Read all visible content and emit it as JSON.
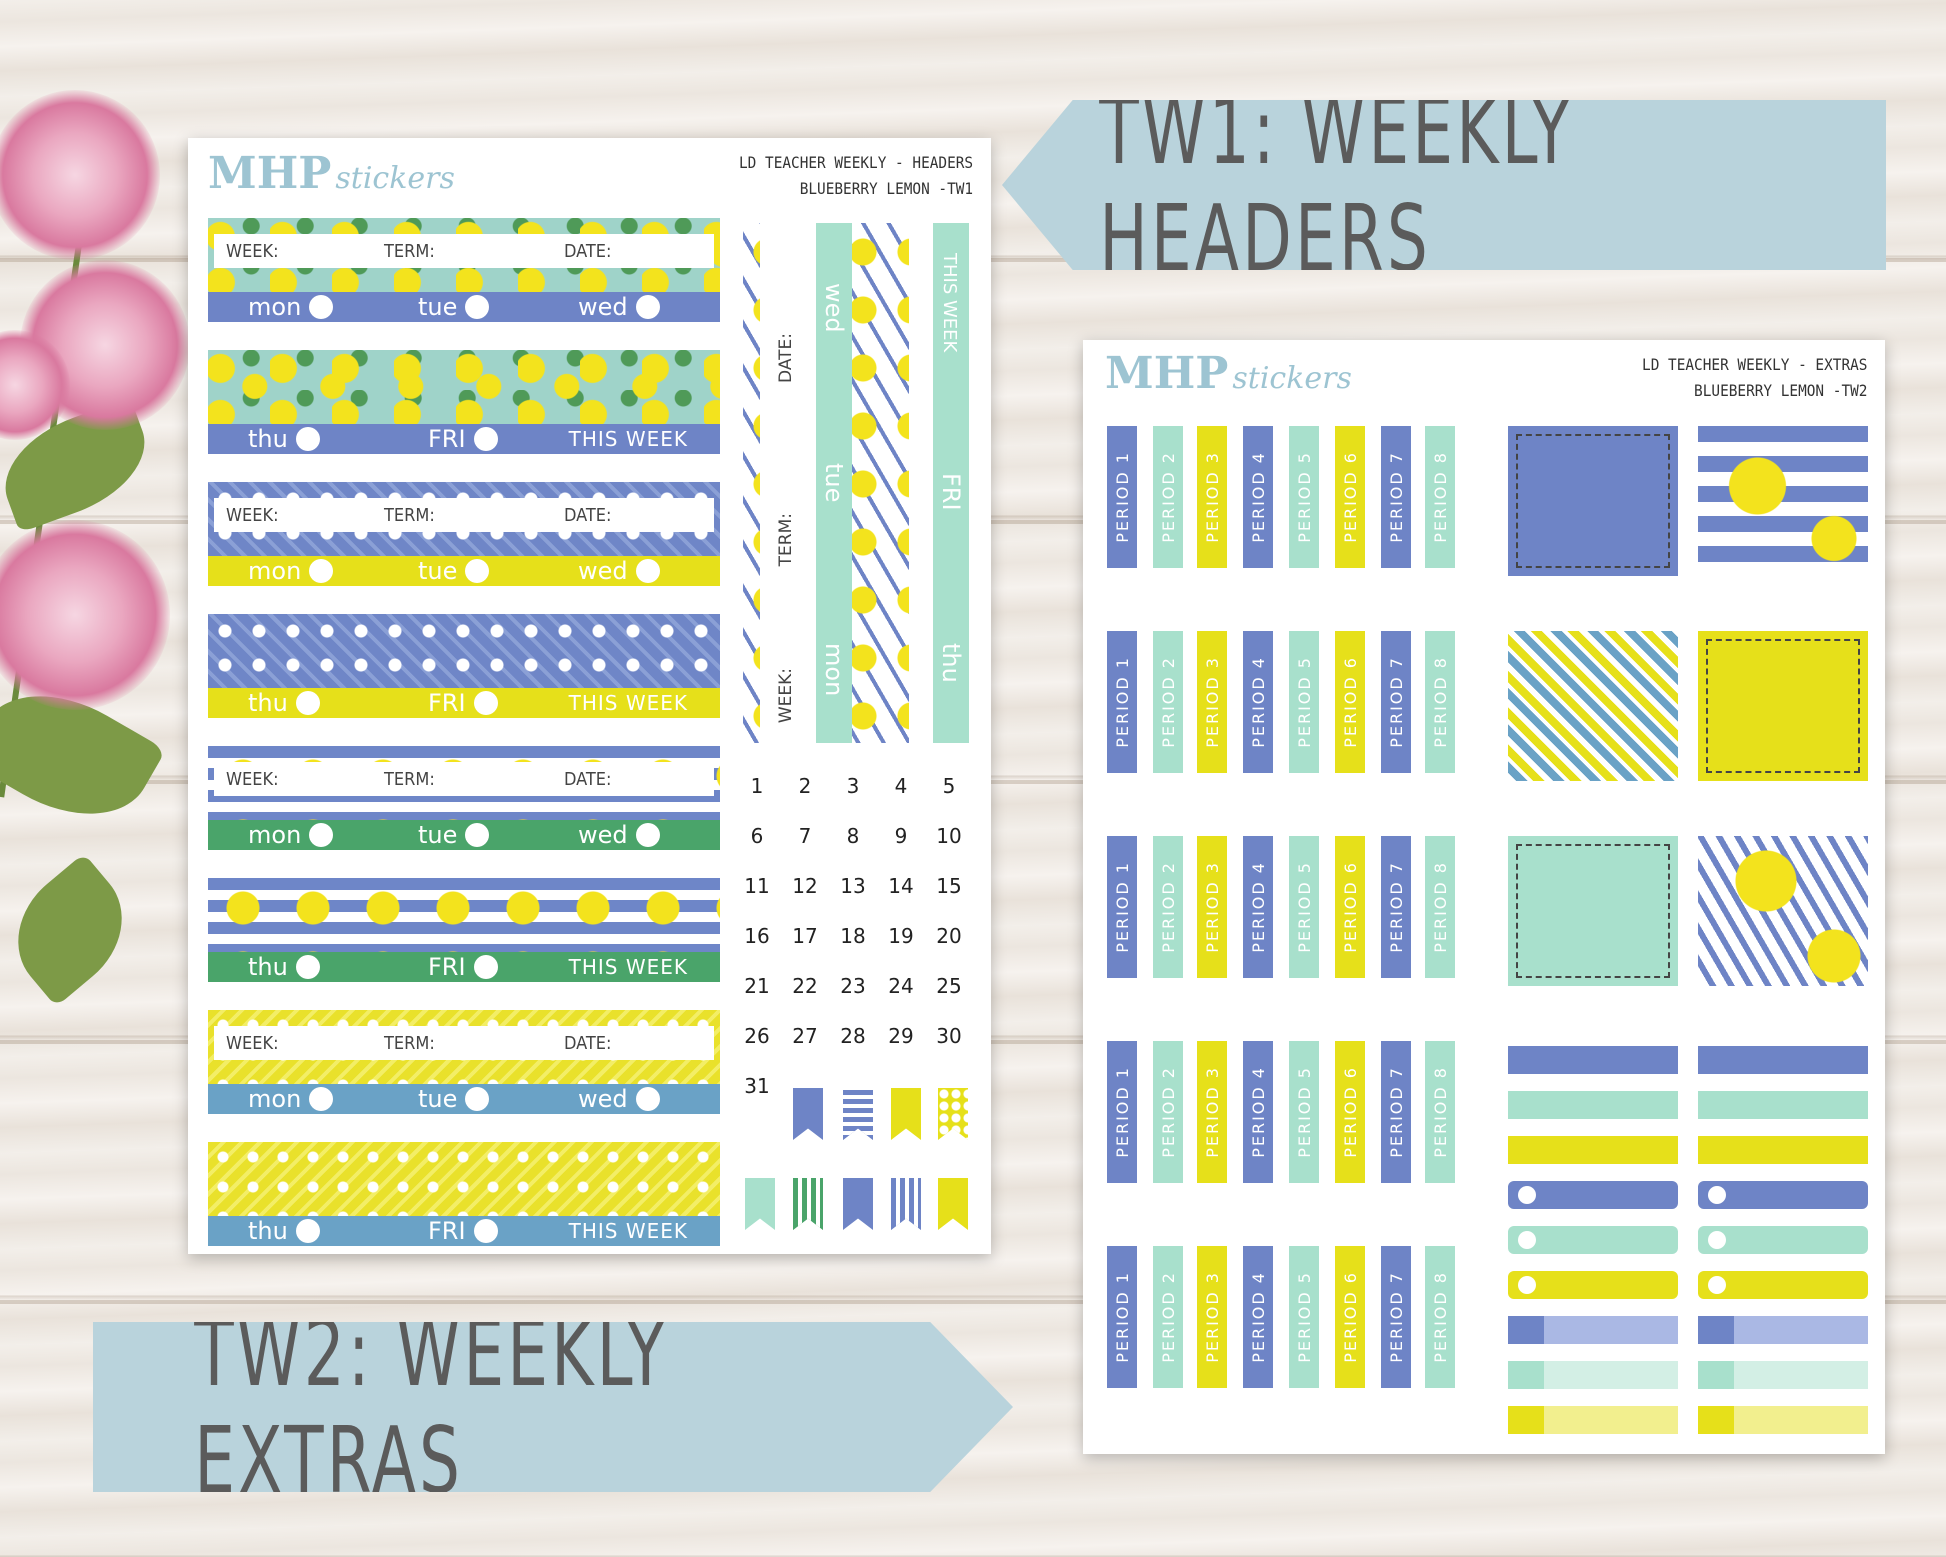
{
  "banners": {
    "tw1": "TW1: WEEKLY HEADERS",
    "tw2": "TW2: WEEKLY EXTRAS"
  },
  "sheet_tw1": {
    "logo_main": "MHP",
    "logo_script": "stickers",
    "title_line1": "LD TEACHER WEEKLY - HEADERS",
    "title_line2": "BLUEBERRY LEMON -TW1",
    "fields": {
      "week": "WEEK:",
      "term": "TERM:",
      "date": "DATE:"
    },
    "days_a": {
      "mon": "mon",
      "tue": "tue",
      "wed": "wed"
    },
    "days_b": {
      "thu": "thu",
      "fri": "FRI",
      "this_week": "THIS WEEK"
    },
    "vertical": {
      "date": "DATE:",
      "term": "TERM:",
      "week": "WEEK:",
      "wed": "wed",
      "tue": "tue",
      "mon": "mon",
      "this_week": "THIS WEEK",
      "fri": "FRI",
      "thu": "thu"
    },
    "calendar": [
      "1",
      "2",
      "3",
      "4",
      "5",
      "6",
      "7",
      "8",
      "9",
      "10",
      "11",
      "12",
      "13",
      "14",
      "15",
      "16",
      "17",
      "18",
      "19",
      "20",
      "21",
      "22",
      "23",
      "24",
      "25",
      "26",
      "27",
      "28",
      "29",
      "30",
      "31"
    ]
  },
  "sheet_tw2": {
    "logo_main": "MHP",
    "logo_script": "stickers",
    "title_line1": "LD TEACHER WEEKLY - EXTRAS",
    "title_line2": "BLUEBERRY LEMON -TW2",
    "periods": [
      "PERIOD 1",
      "PERIOD 2",
      "PERIOD 3",
      "PERIOD 4",
      "PERIOD 5",
      "PERIOD 6",
      "PERIOD 7",
      "PERIOD 8"
    ]
  },
  "colors": {
    "blue": "#6e84c6",
    "mint": "#a8e0cc",
    "yellow": "#e6e01a",
    "green": "#4aa46a",
    "steel": "#6aa2c6",
    "banner": "#b9d3dc"
  }
}
